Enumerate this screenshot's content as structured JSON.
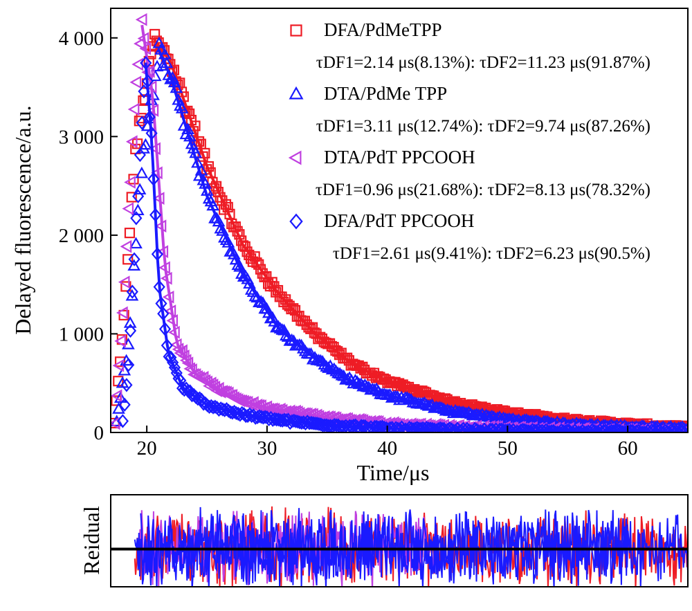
{
  "chart_data": [
    {
      "type": "scatter",
      "xlabel": "Time/μs",
      "ylabel": "Delayed fluorescence/a.u.",
      "xlim": [
        17,
        65
      ],
      "ylim": [
        0,
        4300
      ],
      "x_ticks": [
        "20",
        "30",
        "40",
        "50",
        "60"
      ],
      "x_tick_values": [
        20,
        30,
        40,
        50,
        60
      ],
      "y_ticks": [
        "0",
        "1 000",
        "2 000",
        "3 000",
        "4 000"
      ],
      "y_tick_values": [
        0,
        1000,
        2000,
        3000,
        4000
      ],
      "grid": false,
      "legend_position": "top-right",
      "series": [
        {
          "name": "DFA/PdMeTPP",
          "annotation": "τDF1=2.14 μs(8.13%): τDF2=11.23 μs(91.87%)",
          "marker": "square-icon",
          "color": "#ee1c25",
          "onset": 17.3,
          "peak_t": 20.6,
          "peak_value": 3990,
          "x": [
            17.3,
            18.0,
            19.0,
            20.6,
            22.0,
            25.0,
            28.0,
            31.0,
            34.0,
            37.0,
            40.0,
            45.0,
            50.0,
            55.0,
            60.0,
            65.0
          ],
          "values": [
            100,
            1000,
            2800,
            3990,
            3750,
            2700,
            1900,
            1400,
            1000,
            700,
            520,
            320,
            200,
            130,
            85,
            50
          ]
        },
        {
          "name": "DTA/PdMe TPP",
          "annotation": "τDF1=3.11 μs(12.74%): τDF2=9.74 μs(87.26%)",
          "marker": "triangle-up-icon",
          "color": "#1a1aff",
          "onset": 17.5,
          "peak_t": 21.0,
          "peak_value": 3880,
          "x": [
            17.5,
            18.5,
            19.5,
            21.0,
            22.0,
            25.0,
            28.0,
            31.0,
            34.0,
            37.0,
            40.0,
            45.0,
            50.0,
            55.0,
            60.0,
            65.0
          ],
          "values": [
            100,
            900,
            2600,
            3880,
            3600,
            2400,
            1600,
            1050,
            750,
            520,
            380,
            220,
            130,
            80,
            55,
            40
          ]
        },
        {
          "name": "DTA/PdT PPCOOH",
          "annotation": "τDF1=0.96 μs(21.68%): τDF2=8.13 μs(78.32%)",
          "marker": "triangle-left-icon",
          "color": "#c040e0",
          "onset": 17.4,
          "peak_t": 19.6,
          "peak_value": 4130,
          "x": [
            17.4,
            18.2,
            19.0,
            19.6,
            20.5,
            21.5,
            22.5,
            24.0,
            26.0,
            28.0,
            30.0,
            35.0,
            40.0,
            50.0,
            65.0
          ],
          "values": [
            100,
            1500,
            3300,
            4130,
            3400,
            1700,
            900,
            600,
            430,
            320,
            250,
            150,
            90,
            40,
            10
          ]
        },
        {
          "name": "DFA/PdT PPCOOH",
          "annotation": "τDF1=2.61 μs(9.41%): τDF2=6.23 μs(90.5%)",
          "marker": "diamond-icon",
          "color": "#1a1aff",
          "onset": 18.0,
          "peak_t": 19.9,
          "peak_value": 3750,
          "x": [
            18.0,
            18.5,
            19.2,
            19.9,
            20.4,
            21.0,
            21.8,
            23.0,
            25.0,
            28.0,
            32.0,
            36.0,
            40.0,
            50.0,
            65.0
          ],
          "values": [
            100,
            700,
            2300,
            3750,
            3000,
            1500,
            800,
            450,
            280,
            180,
            110,
            70,
            40,
            15,
            5
          ]
        }
      ]
    },
    {
      "type": "line",
      "ylabel": "Reidual",
      "xlim": [
        17,
        65
      ],
      "ylim": [
        -1,
        1
      ],
      "zero_line": true,
      "series": [
        {
          "name": "DFA/PdMeTPP",
          "color": "#ee1c25",
          "start": 19.0,
          "end": 65.0
        },
        {
          "name": "DTA/PdMe TPP",
          "color": "#1a1aff",
          "start": 19.0,
          "end": 65.0
        },
        {
          "name": "DTA/PdT PPCOOH",
          "color": "#c040e0",
          "start": 19.3,
          "end": 44.0
        },
        {
          "name": "DFA/PdT PPCOOH",
          "color": "#1a1aff",
          "start": 19.5,
          "end": 60.0
        }
      ]
    }
  ]
}
